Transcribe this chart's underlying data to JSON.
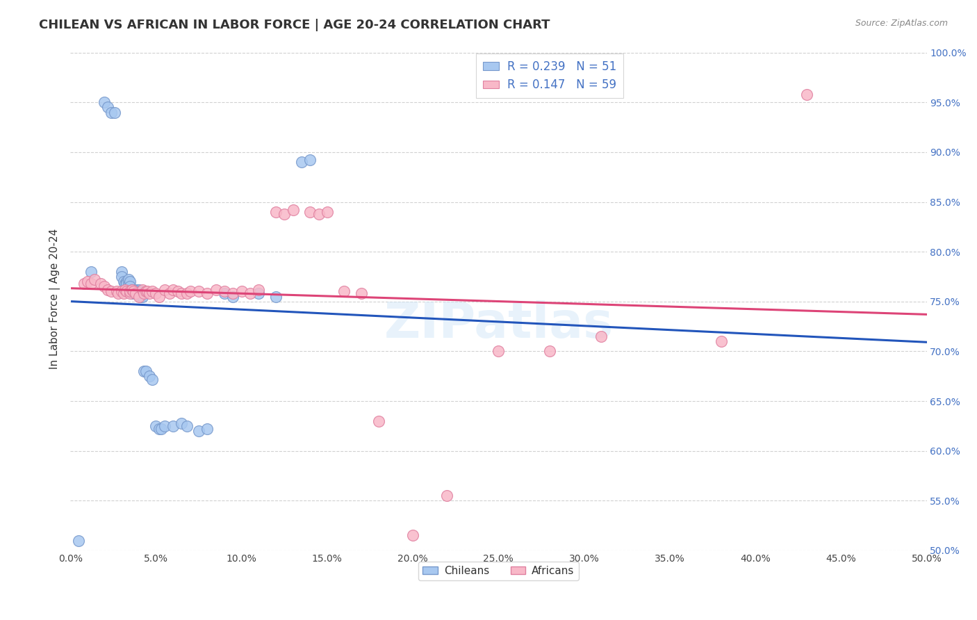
{
  "title": "CHILEAN VS AFRICAN IN LABOR FORCE | AGE 20-24 CORRELATION CHART",
  "source": "Source: ZipAtlas.com",
  "ylabel": "In Labor Force | Age 20-24",
  "xlim": [
    0.0,
    0.5
  ],
  "ylim": [
    0.5,
    1.005
  ],
  "xticks": [
    0.0,
    0.05,
    0.1,
    0.15,
    0.2,
    0.25,
    0.3,
    0.35,
    0.4,
    0.45,
    0.5
  ],
  "yticks": [
    0.5,
    0.55,
    0.6,
    0.65,
    0.7,
    0.75,
    0.8,
    0.85,
    0.9,
    0.95,
    1.0
  ],
  "ytick_labels": [
    "50.0%",
    "55.0%",
    "60.0%",
    "65.0%",
    "70.0%",
    "75.0%",
    "80.0%",
    "85.0%",
    "90.0%",
    "95.0%",
    "100.0%"
  ],
  "xtick_labels": [
    "0.0%",
    "5.0%",
    "10.0%",
    "15.0%",
    "20.0%",
    "25.0%",
    "30.0%",
    "35.0%",
    "40.0%",
    "45.0%",
    "50.0%"
  ],
  "chilean_color": "#a8c8f0",
  "african_color": "#f8b8c8",
  "chilean_edge": "#7799cc",
  "african_edge": "#e080a0",
  "trend_blue": "#2255bb",
  "trend_pink": "#dd4477",
  "legend_r_chilean": "R = 0.239",
  "legend_n_chilean": "N = 51",
  "legend_r_african": "R = 0.147",
  "legend_n_african": "N = 59",
  "chilean_x": [
    0.005,
    0.012,
    0.02,
    0.022,
    0.024,
    0.026,
    0.03,
    0.03,
    0.031,
    0.032,
    0.033,
    0.033,
    0.034,
    0.034,
    0.034,
    0.035,
    0.035,
    0.035,
    0.036,
    0.036,
    0.036,
    0.037,
    0.037,
    0.038,
    0.038,
    0.039,
    0.039,
    0.04,
    0.04,
    0.041,
    0.041,
    0.042,
    0.043,
    0.044,
    0.046,
    0.048,
    0.05,
    0.052,
    0.053,
    0.055,
    0.06,
    0.065,
    0.068,
    0.075,
    0.08,
    0.09,
    0.095,
    0.11,
    0.12,
    0.135,
    0.14
  ],
  "chilean_y": [
    0.51,
    0.78,
    0.95,
    0.945,
    0.94,
    0.94,
    0.78,
    0.775,
    0.77,
    0.768,
    0.77,
    0.768,
    0.765,
    0.768,
    0.772,
    0.77,
    0.765,
    0.76,
    0.76,
    0.758,
    0.762,
    0.762,
    0.76,
    0.758,
    0.76,
    0.762,
    0.76,
    0.762,
    0.76,
    0.758,
    0.755,
    0.755,
    0.68,
    0.68,
    0.675,
    0.672,
    0.625,
    0.622,
    0.622,
    0.625,
    0.625,
    0.628,
    0.625,
    0.62,
    0.622,
    0.758,
    0.755,
    0.758,
    0.755,
    0.89,
    0.892
  ],
  "african_x": [
    0.008,
    0.01,
    0.012,
    0.014,
    0.018,
    0.02,
    0.022,
    0.024,
    0.027,
    0.028,
    0.03,
    0.031,
    0.032,
    0.033,
    0.035,
    0.035,
    0.036,
    0.037,
    0.038,
    0.04,
    0.042,
    0.043,
    0.044,
    0.045,
    0.046,
    0.048,
    0.05,
    0.052,
    0.055,
    0.058,
    0.06,
    0.063,
    0.065,
    0.068,
    0.07,
    0.075,
    0.08,
    0.085,
    0.09,
    0.095,
    0.1,
    0.105,
    0.11,
    0.12,
    0.125,
    0.13,
    0.14,
    0.145,
    0.15,
    0.16,
    0.17,
    0.18,
    0.2,
    0.22,
    0.25,
    0.28,
    0.31,
    0.38,
    0.43
  ],
  "african_y": [
    0.768,
    0.77,
    0.768,
    0.772,
    0.768,
    0.765,
    0.762,
    0.76,
    0.76,
    0.758,
    0.76,
    0.758,
    0.762,
    0.76,
    0.758,
    0.76,
    0.762,
    0.76,
    0.758,
    0.755,
    0.762,
    0.758,
    0.76,
    0.76,
    0.758,
    0.76,
    0.758,
    0.755,
    0.762,
    0.758,
    0.762,
    0.76,
    0.758,
    0.758,
    0.76,
    0.76,
    0.758,
    0.762,
    0.76,
    0.758,
    0.76,
    0.758,
    0.762,
    0.84,
    0.838,
    0.842,
    0.84,
    0.838,
    0.84,
    0.76,
    0.758,
    0.63,
    0.515,
    0.555,
    0.7,
    0.7,
    0.715,
    0.71,
    0.958
  ]
}
